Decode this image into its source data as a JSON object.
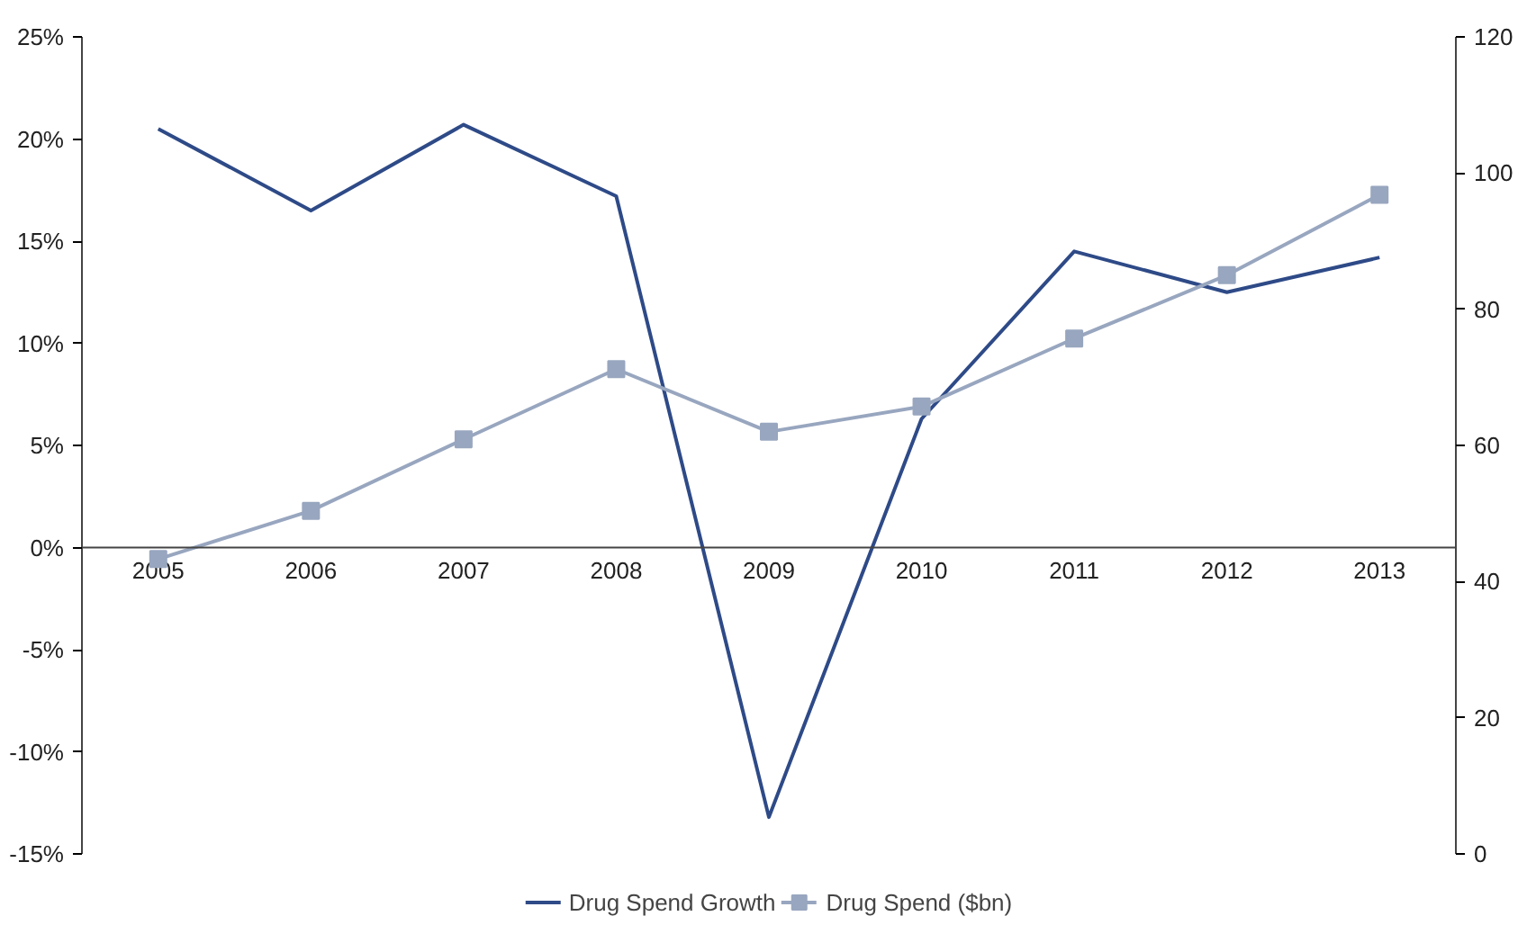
{
  "chart_data": {
    "type": "line",
    "categories": [
      "2005",
      "2006",
      "2007",
      "2008",
      "2009",
      "2010",
      "2011",
      "2012",
      "2013"
    ],
    "series": [
      {
        "name": "Drug Spend Growth",
        "color": "#2e4a87",
        "marker": "none",
        "values": [
          20.5,
          16.5,
          20.7,
          17.2,
          -13.2,
          6.3,
          14.5,
          12.5,
          14.2
        ]
      },
      {
        "name": "Drug Spend ($bn)",
        "color": "#98a6bf",
        "marker": "square",
        "axis": "y2",
        "values": [
          43.3,
          50.4,
          60.9,
          71.2,
          62.0,
          65.7,
          75.7,
          85.0,
          96.8
        ]
      }
    ],
    "ylim": [
      -15,
      25
    ],
    "yticks": [
      {
        "value": -15,
        "label": "-15%"
      },
      {
        "value": -10,
        "label": "-10%"
      },
      {
        "value": -5,
        "label": "-5%"
      },
      {
        "value": 0,
        "label": "0%"
      },
      {
        "value": 5,
        "label": "5%"
      },
      {
        "value": 10,
        "label": "10%"
      },
      {
        "value": 15,
        "label": "15%"
      },
      {
        "value": 20,
        "label": "20%"
      },
      {
        "value": 25,
        "label": "25%"
      }
    ],
    "y2lim": [
      0,
      120
    ],
    "y2ticks": [
      0,
      20,
      40,
      60,
      80,
      100,
      120
    ],
    "grid": false,
    "legend": "bottom"
  }
}
